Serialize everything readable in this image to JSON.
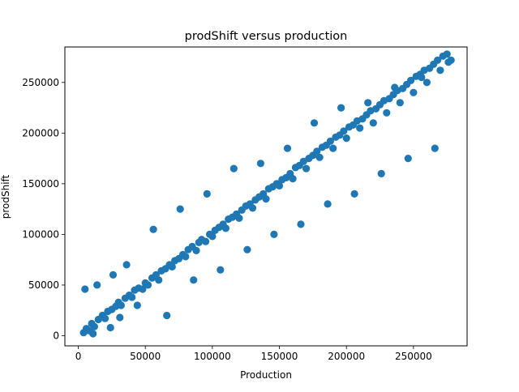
{
  "chart_data": {
    "type": "scatter",
    "title": "prodShift versus production",
    "xlabel": "Production",
    "ylabel": "prodShift",
    "xlim": [
      -10000,
      290000
    ],
    "ylim": [
      -10000,
      285000
    ],
    "x_ticks": [
      0,
      50000,
      100000,
      150000,
      200000,
      250000
    ],
    "x_tick_labels": [
      "0",
      "50000",
      "100000",
      "150000",
      "200000",
      "250000"
    ],
    "y_ticks": [
      0,
      50000,
      100000,
      150000,
      200000,
      250000
    ],
    "y_tick_labels": [
      "0",
      "50000",
      "100000",
      "150000",
      "200000",
      "250000"
    ],
    "grid": false,
    "legend": "none",
    "marker_color": "#1f77b4",
    "series": [
      {
        "x": [
          4000,
          6000,
          8000,
          10000,
          12000,
          15000,
          18000,
          20000,
          22000,
          25000,
          28000,
          30000,
          32000,
          35000,
          38000,
          40000,
          42000,
          45000,
          48000,
          50000,
          52000,
          55000,
          58000,
          60000,
          62000,
          65000,
          68000,
          70000,
          72000,
          75000,
          78000,
          80000,
          82000,
          85000,
          88000,
          90000,
          92000,
          95000,
          98000,
          100000,
          102000,
          105000,
          108000,
          110000,
          112000,
          115000,
          118000,
          120000,
          122000,
          125000,
          128000,
          130000,
          132000,
          135000,
          138000,
          140000,
          142000,
          145000,
          148000,
          150000,
          152000,
          155000,
          158000,
          160000,
          162000,
          165000,
          168000,
          170000,
          172000,
          175000,
          178000,
          180000,
          182000,
          185000,
          188000,
          190000,
          192000,
          195000,
          198000,
          200000,
          202000,
          205000,
          208000,
          210000,
          212000,
          215000,
          218000,
          220000,
          222000,
          225000,
          228000,
          230000,
          232000,
          235000,
          238000,
          240000,
          242000,
          245000,
          248000,
          250000,
          252000,
          255000,
          258000,
          260000,
          262000,
          265000,
          268000,
          270000,
          272000,
          275000,
          278000,
          5000,
          11000,
          14000,
          24000,
          26000,
          31000,
          36000,
          44000,
          56000,
          66000,
          76000,
          86000,
          96000,
          106000,
          116000,
          126000,
          136000,
          146000,
          156000,
          166000,
          176000,
          186000,
          196000,
          206000,
          216000,
          226000,
          236000,
          246000,
          256000,
          266000,
          276000
        ],
        "y": [
          3000,
          7000,
          5000,
          12000,
          9000,
          16000,
          20000,
          17000,
          24000,
          26000,
          29000,
          33000,
          30000,
          37000,
          40000,
          38000,
          45000,
          47000,
          46000,
          52000,
          50000,
          57000,
          60000,
          55000,
          64000,
          66000,
          70000,
          68000,
          74000,
          76000,
          80000,
          78000,
          85000,
          88000,
          84000,
          92000,
          95000,
          93000,
          100000,
          98000,
          104000,
          107000,
          110000,
          106000,
          115000,
          117000,
          120000,
          116000,
          124000,
          128000,
          130000,
          126000,
          134000,
          137000,
          140000,
          135000,
          145000,
          147000,
          150000,
          148000,
          154000,
          156000,
          160000,
          155000,
          166000,
          168000,
          172000,
          165000,
          175000,
          178000,
          182000,
          176000,
          186000,
          188000,
          192000,
          185000,
          196000,
          198000,
          202000,
          195000,
          206000,
          208000,
          212000,
          205000,
          214000,
          218000,
          222000,
          210000,
          224000,
          228000,
          232000,
          220000,
          234000,
          238000,
          242000,
          230000,
          244000,
          248000,
          252000,
          240000,
          256000,
          258000,
          262000,
          250000,
          264000,
          268000,
          272000,
          262000,
          276000,
          278000,
          272000,
          46000,
          2000,
          50000,
          8000,
          60000,
          18000,
          70000,
          30000,
          105000,
          20000,
          125000,
          55000,
          140000,
          65000,
          165000,
          85000,
          170000,
          100000,
          185000,
          110000,
          210000,
          130000,
          225000,
          140000,
          230000,
          160000,
          245000,
          175000,
          255000,
          185000,
          270000
        ]
      }
    ]
  }
}
